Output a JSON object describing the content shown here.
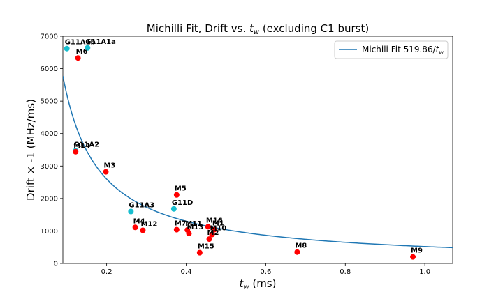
{
  "chart_data": {
    "type": "scatter",
    "title_main": "Michilli Fit, Drift vs. ",
    "title_var": "t",
    "title_sub": "w",
    "title_tail": " (excluding C1 burst)",
    "xlabel_var": "t",
    "xlabel_sub": "w",
    "xlabel_unit": " (ms)",
    "ylabel": "Drift × -1 (MHz/ms)",
    "xlim": [
      0.09,
      1.07
    ],
    "ylim": [
      0,
      7000
    ],
    "xticks": [
      0.2,
      0.4,
      0.6,
      0.8,
      1.0
    ],
    "xtick_labels": [
      "0.2",
      "0.4",
      "0.6",
      "0.8",
      "1.0"
    ],
    "yticks": [
      0,
      1000,
      2000,
      3000,
      4000,
      5000,
      6000,
      7000
    ],
    "ytick_labels": [
      "0",
      "1000",
      "2000",
      "3000",
      "4000",
      "5000",
      "6000",
      "7000"
    ],
    "fit": {
      "name_prefix": "Michili Fit 519.86/",
      "name_var": "t",
      "name_sub": "w",
      "coefficient": 519.86,
      "color": "#1f77b4"
    },
    "legend_position": "upper right",
    "colors": {
      "red": "#ff0000",
      "cyan": "#17becf"
    },
    "points": [
      {
        "label": "G11A1b",
        "x": 0.1,
        "y": 6620,
        "color": "cyan"
      },
      {
        "label": "G11A1a",
        "x": 0.152,
        "y": 6640,
        "color": "cyan"
      },
      {
        "label": "M6",
        "x": 0.128,
        "y": 6330,
        "color": "red"
      },
      {
        "label": "G11A2",
        "x": 0.122,
        "y": 3470,
        "color": "cyan"
      },
      {
        "label": "M14",
        "x": 0.122,
        "y": 3440,
        "color": "red"
      },
      {
        "label": "M3",
        "x": 0.198,
        "y": 2820,
        "color": "red"
      },
      {
        "label": "M5",
        "x": 0.376,
        "y": 2110,
        "color": "red"
      },
      {
        "label": "G11A3",
        "x": 0.261,
        "y": 1600,
        "color": "cyan"
      },
      {
        "label": "G11D",
        "x": 0.369,
        "y": 1680,
        "color": "cyan"
      },
      {
        "label": "M4",
        "x": 0.272,
        "y": 1110,
        "color": "red"
      },
      {
        "label": "M12",
        "x": 0.291,
        "y": 1020,
        "color": "red"
      },
      {
        "label": "M7",
        "x": 0.376,
        "y": 1040,
        "color": "red"
      },
      {
        "label": "M11",
        "x": 0.403,
        "y": 1030,
        "color": "red"
      },
      {
        "label": "M13",
        "x": 0.407,
        "y": 920,
        "color": "red"
      },
      {
        "label": "M16",
        "x": 0.455,
        "y": 1130,
        "color": "red"
      },
      {
        "label": "M1",
        "x": 0.471,
        "y": 1040,
        "color": "red"
      },
      {
        "label": "M10",
        "x": 0.465,
        "y": 890,
        "color": "red"
      },
      {
        "label": "M2",
        "x": 0.458,
        "y": 750,
        "color": "red"
      },
      {
        "label": "M15",
        "x": 0.434,
        "y": 330,
        "color": "red"
      },
      {
        "label": "M8",
        "x": 0.679,
        "y": 350,
        "color": "red"
      },
      {
        "label": "M9",
        "x": 0.97,
        "y": 200,
        "color": "red"
      }
    ]
  }
}
